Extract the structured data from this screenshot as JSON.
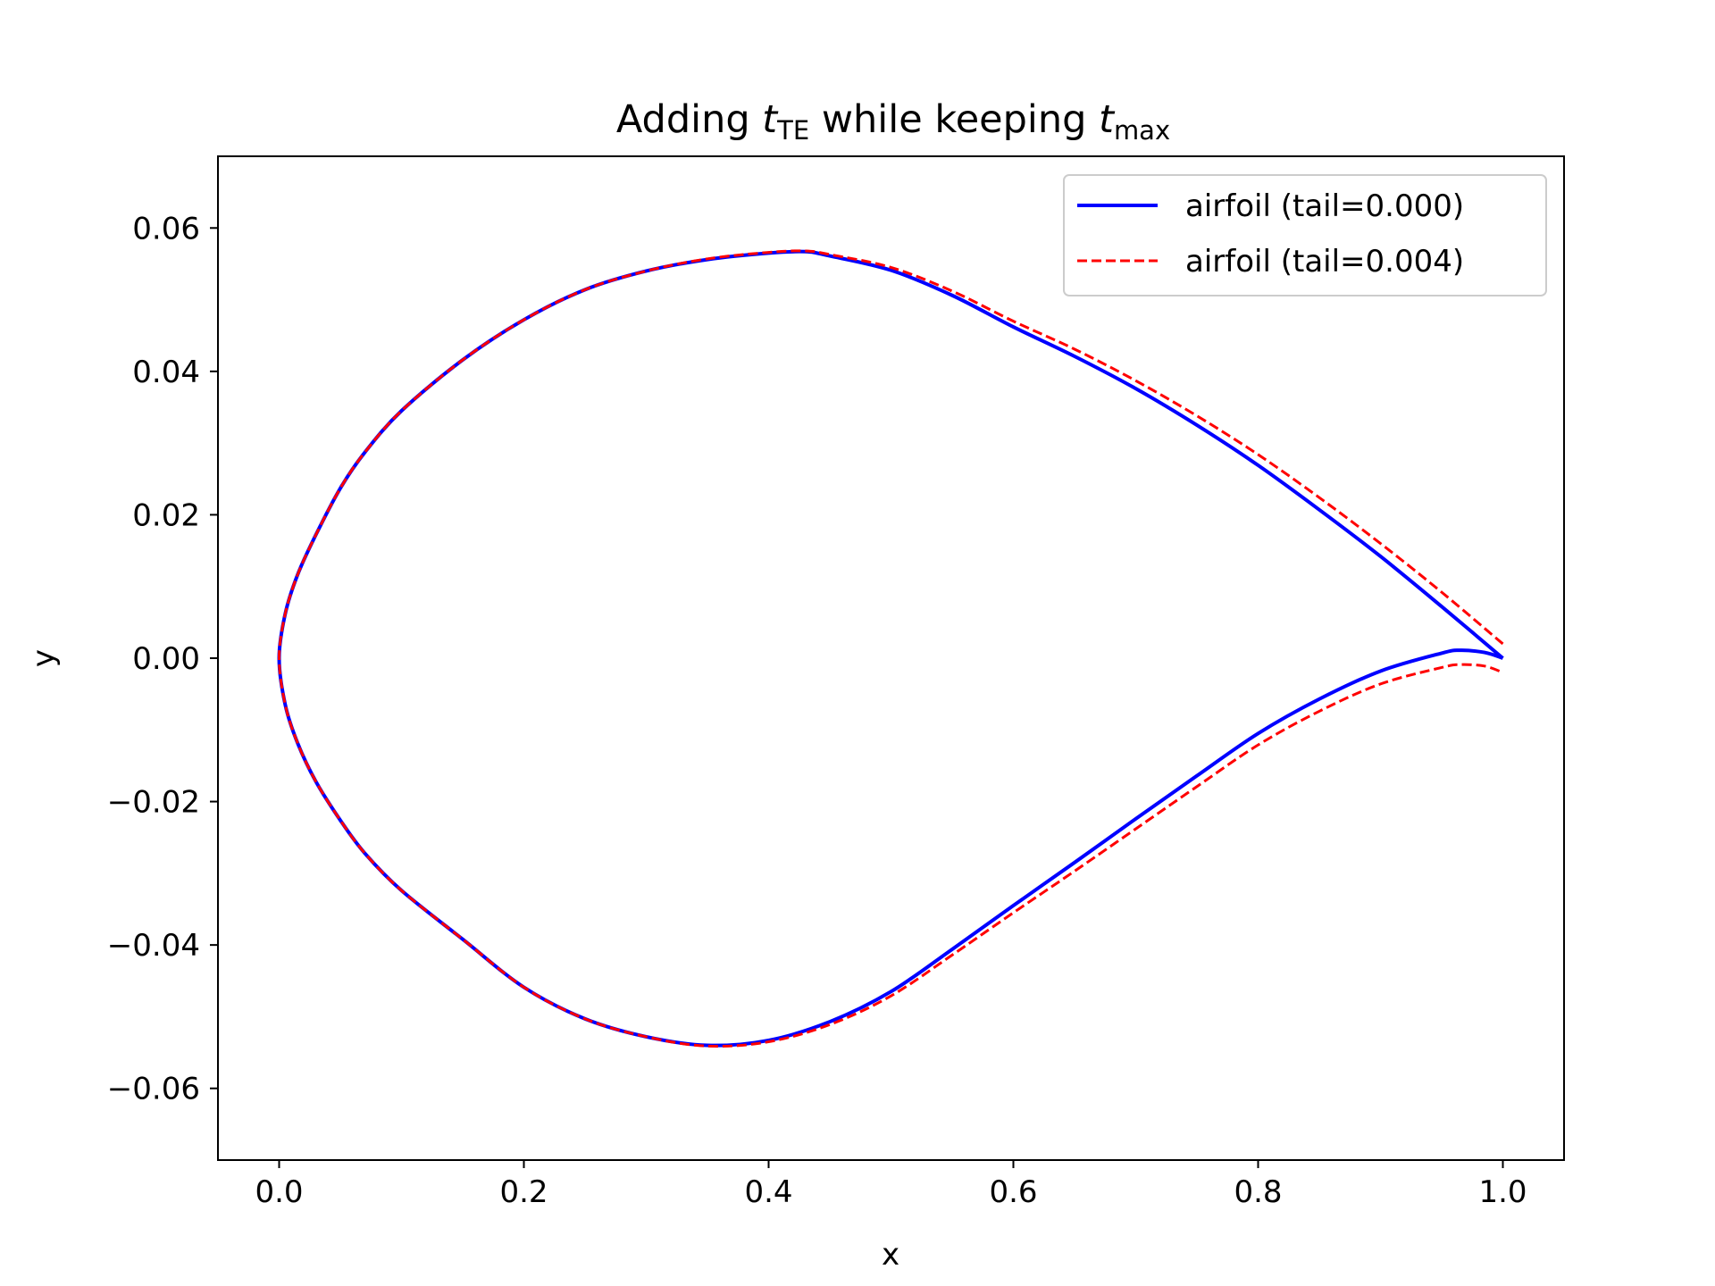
{
  "chart_data": {
    "type": "line",
    "title": {
      "base": "Adding ",
      "sym1": "t",
      "sub1": "TE",
      "mid": " while keeping ",
      "sym2": "t",
      "sub2": "max"
    },
    "xlabel": "x",
    "ylabel": "y",
    "xlim": [
      -0.05,
      1.05
    ],
    "ylim": [
      -0.07,
      0.07
    ],
    "xticks": [
      0.0,
      0.2,
      0.4,
      0.6,
      0.8,
      1.0
    ],
    "xtick_labels": [
      "0.0",
      "0.2",
      "0.4",
      "0.6",
      "0.8",
      "1.0"
    ],
    "yticks": [
      -0.06,
      -0.04,
      -0.02,
      0.0,
      0.02,
      0.04,
      0.06
    ],
    "ytick_labels": [
      "−0.06",
      "−0.04",
      "−0.02",
      "0.00",
      "0.02",
      "0.04",
      "0.06"
    ],
    "grid": false,
    "legend_position": "top-right",
    "series": [
      {
        "name": "airfoil (tail=0.000)",
        "color": "#0000ff",
        "style": "solid",
        "x": [
          1.0,
          0.95,
          0.9,
          0.85,
          0.8,
          0.75,
          0.7,
          0.65,
          0.6,
          0.55,
          0.5,
          0.45,
          0.43,
          0.4,
          0.35,
          0.3,
          0.25,
          0.2,
          0.15,
          0.1,
          0.07,
          0.05,
          0.03,
          0.015,
          0.005,
          0.0,
          0.005,
          0.015,
          0.03,
          0.05,
          0.07,
          0.1,
          0.15,
          0.2,
          0.25,
          0.3,
          0.35,
          0.4,
          0.45,
          0.5,
          0.55,
          0.6,
          0.65,
          0.7,
          0.75,
          0.8,
          0.85,
          0.9,
          0.95,
          0.965,
          0.985,
          1.0
        ],
        "y": [
          0.0,
          0.0072,
          0.0142,
          0.0207,
          0.0269,
          0.0325,
          0.0376,
          0.0421,
          0.0462,
          0.0506,
          0.0541,
          0.0561,
          0.0567,
          0.0565,
          0.0556,
          0.054,
          0.0514,
          0.0472,
          0.0416,
          0.0345,
          0.0287,
          0.0237,
          0.0172,
          0.0116,
          0.0062,
          0.0,
          -0.0065,
          -0.0118,
          -0.0172,
          -0.0226,
          -0.0272,
          -0.0324,
          -0.0392,
          -0.0459,
          -0.0503,
          -0.0528,
          -0.054,
          -0.0533,
          -0.0507,
          -0.0465,
          -0.0406,
          -0.0345,
          -0.0285,
          -0.0224,
          -0.0164,
          -0.0105,
          -0.0057,
          -0.0018,
          0.0007,
          0.0011,
          0.0008,
          0.0
        ]
      },
      {
        "name": "airfoil (tail=0.004)",
        "color": "#ff0000",
        "style": "dashed",
        "x": [
          1.0,
          0.95,
          0.9,
          0.85,
          0.8,
          0.75,
          0.7,
          0.65,
          0.6,
          0.55,
          0.5,
          0.45,
          0.43,
          0.4,
          0.35,
          0.3,
          0.25,
          0.2,
          0.15,
          0.1,
          0.07,
          0.05,
          0.03,
          0.015,
          0.005,
          0.0,
          0.005,
          0.015,
          0.03,
          0.05,
          0.07,
          0.1,
          0.15,
          0.2,
          0.25,
          0.3,
          0.35,
          0.4,
          0.45,
          0.5,
          0.55,
          0.6,
          0.65,
          0.7,
          0.75,
          0.8,
          0.85,
          0.9,
          0.95,
          0.965,
          0.985,
          1.0
        ],
        "y": [
          0.002,
          0.0092,
          0.016,
          0.0224,
          0.0284,
          0.0338,
          0.0387,
          0.0431,
          0.047,
          0.0512,
          0.0545,
          0.0563,
          0.0568,
          0.0566,
          0.0557,
          0.054,
          0.0514,
          0.0472,
          0.0416,
          0.0345,
          0.0287,
          0.0237,
          0.0172,
          0.0116,
          0.0062,
          0.0,
          -0.0065,
          -0.0118,
          -0.0172,
          -0.0226,
          -0.0272,
          -0.0324,
          -0.0392,
          -0.0459,
          -0.0503,
          -0.0528,
          -0.0541,
          -0.0535,
          -0.0511,
          -0.0471,
          -0.0414,
          -0.0355,
          -0.0297,
          -0.0238,
          -0.0179,
          -0.0121,
          -0.0074,
          -0.0036,
          -0.0013,
          -0.0009,
          -0.0011,
          -0.002
        ]
      }
    ]
  }
}
